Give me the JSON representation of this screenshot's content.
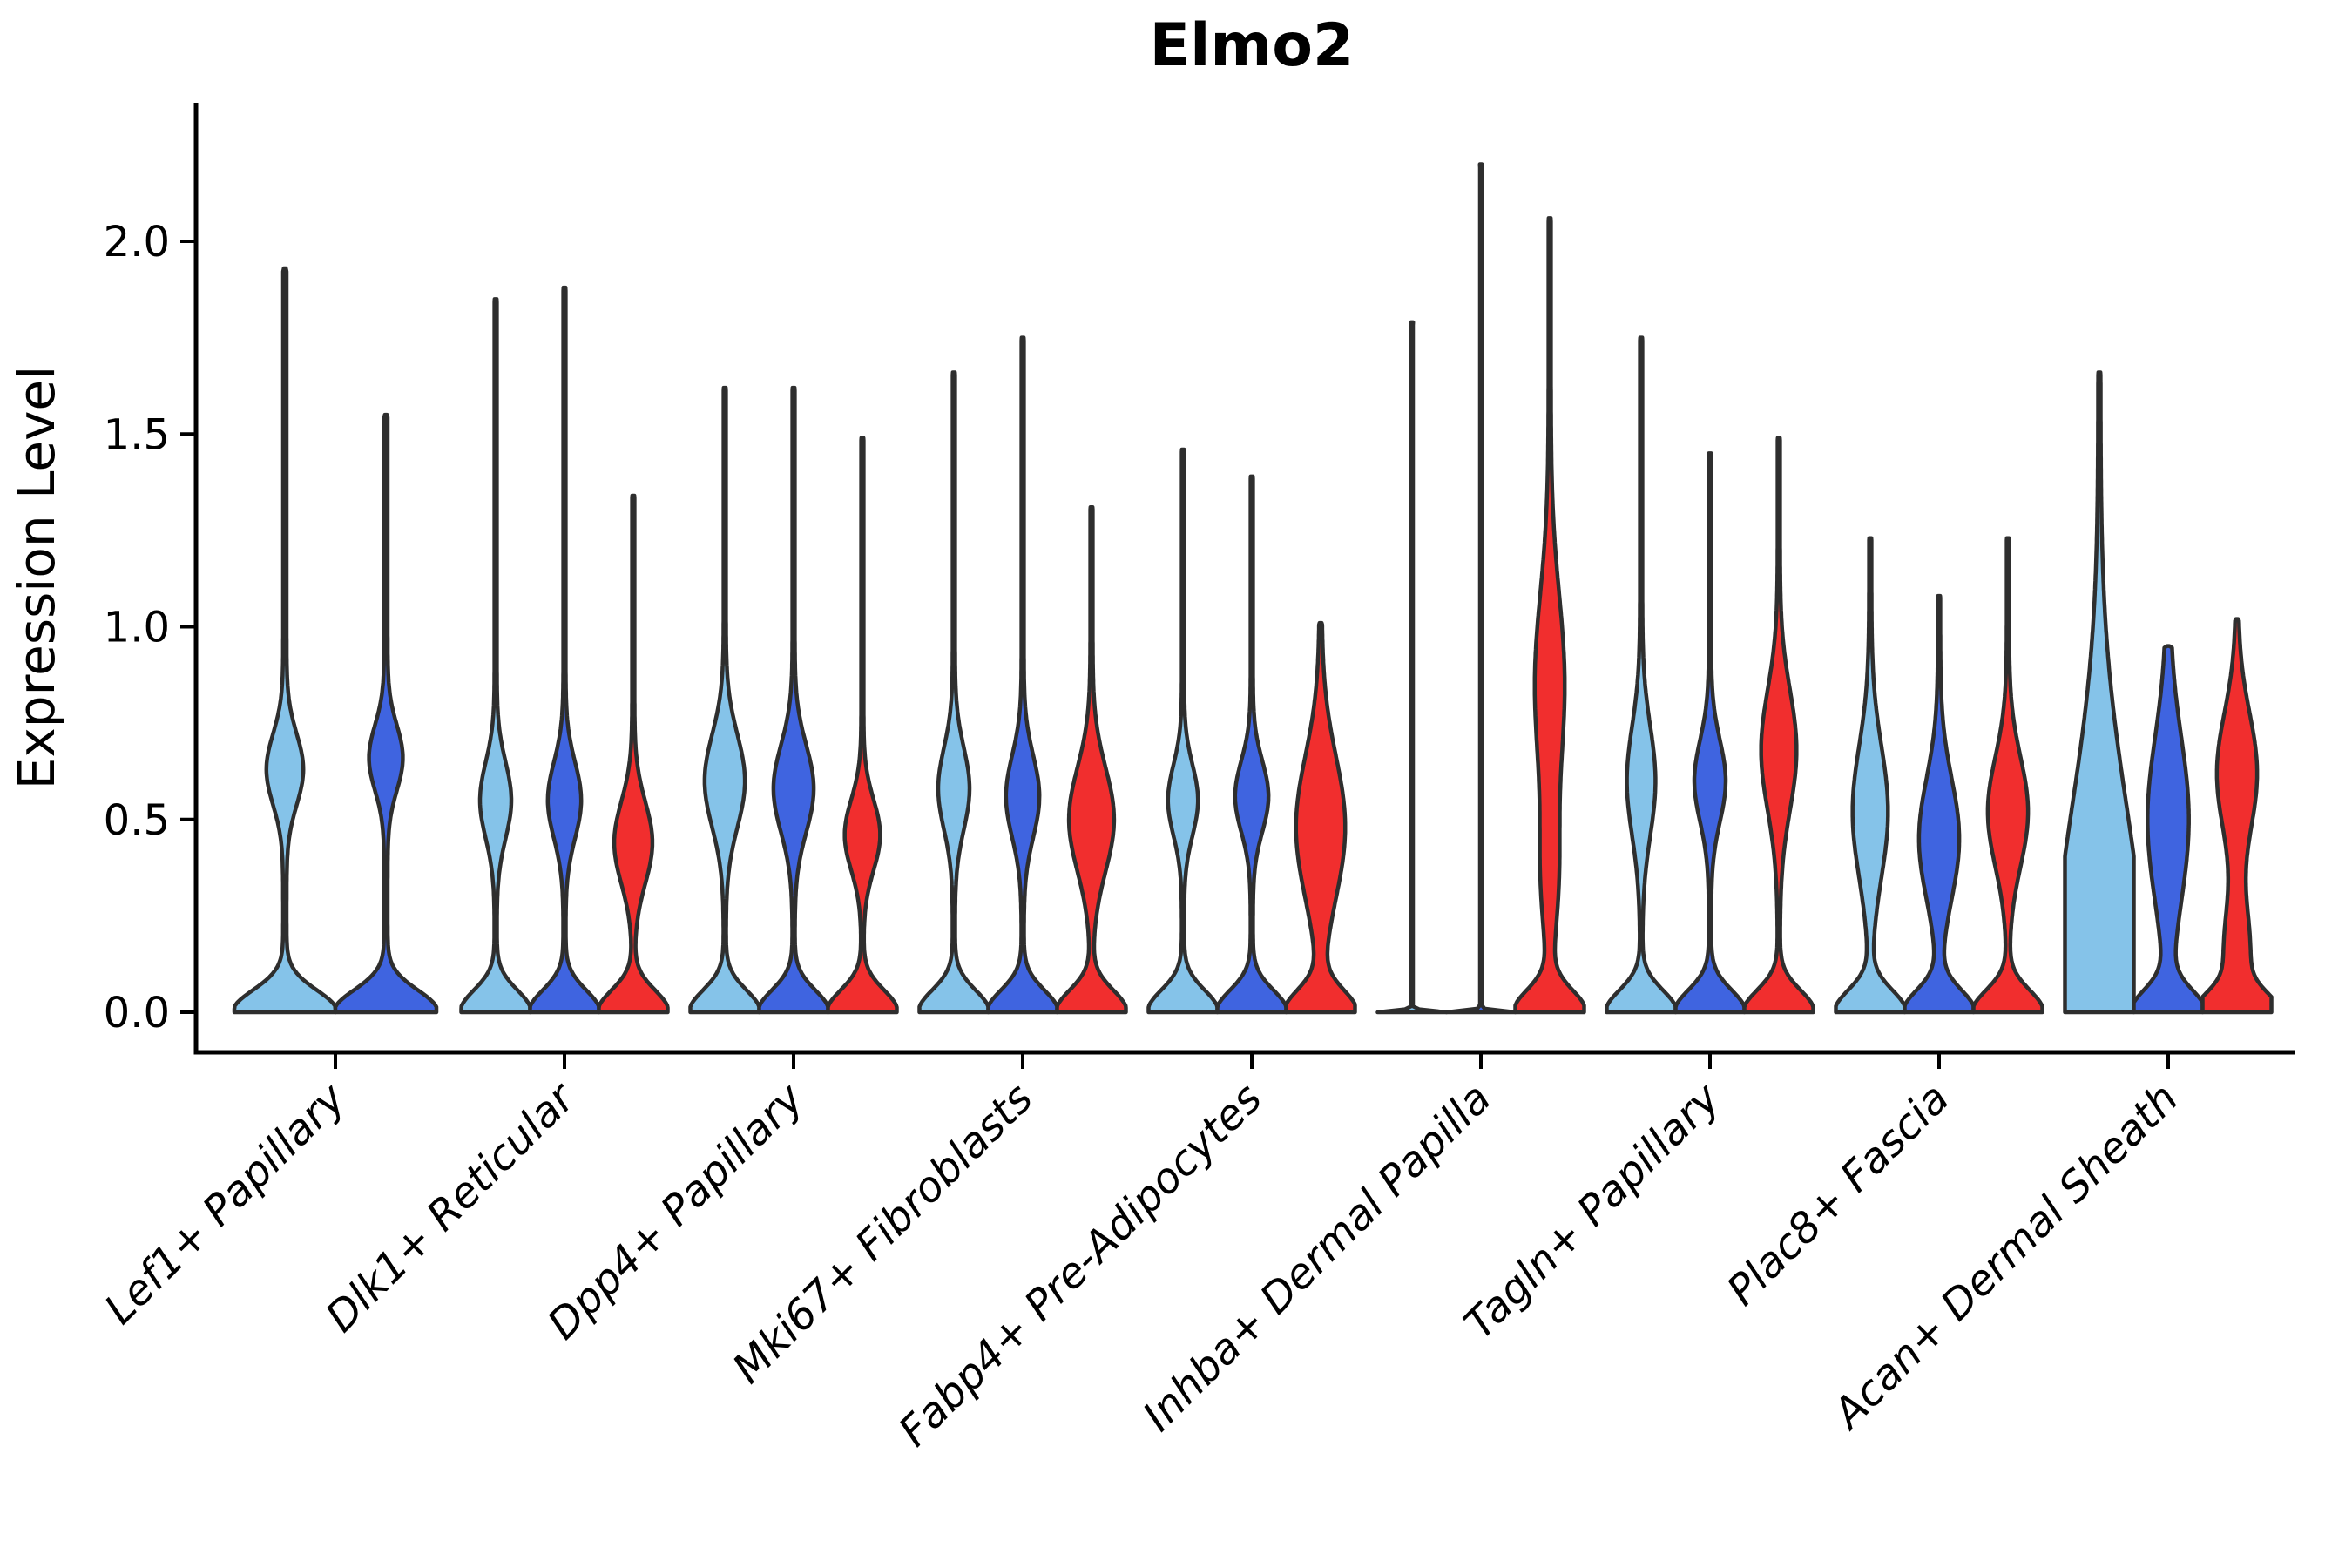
{
  "title": "Elmo2",
  "ylabel": "Expression Level",
  "chart_data": {
    "type": "violin",
    "title": "Elmo2",
    "ylabel": "Expression Level",
    "xlabel": "",
    "grid": false,
    "legend": "none",
    "ylim": [
      0,
      2.36
    ],
    "yticks": [
      "0.0",
      "0.5",
      "1.0",
      "1.5",
      "2.0"
    ],
    "ytick_values": [
      0.0,
      0.5,
      1.0,
      1.5,
      2.0
    ],
    "categories": [
      "Lef1+ Papillary",
      "Dlk1+ Reticular",
      "Dpp4+ Papillary",
      "Mki67+ Fibroblasts",
      "Fabp4+ Pre-Adipocytes",
      "Inhba+ Dermal Papilla",
      "Tagln+ Papillary",
      "Plac8+ Fascia",
      "Acan+ Dermal Sheath"
    ],
    "colors": {
      "light-blue": "#85C3E9",
      "dark-blue": "#3F64E0",
      "red": "#F12E2E"
    },
    "outline_color": "#2E2E2E",
    "axis_color": "#000000",
    "violins": [
      [
        {
          "series": "light-blue",
          "peak": 1.93,
          "bulges": [
            [
              0.63,
              0.13,
              0.33
            ]
          ]
        },
        {
          "series": "dark-blue",
          "peak": 1.55,
          "bulges": [
            [
              0.66,
              0.12,
              0.3
            ]
          ]
        }
      ],
      [
        {
          "series": "light-blue",
          "peak": 1.85,
          "bulges": [
            [
              0.55,
              0.14,
              0.42
            ]
          ]
        },
        {
          "series": "dark-blue",
          "peak": 1.88,
          "bulges": [
            [
              0.55,
              0.14,
              0.45
            ]
          ]
        },
        {
          "series": "red",
          "peak": 1.34,
          "bulges": [
            [
              0.44,
              0.15,
              0.52
            ]
          ]
        }
      ],
      [
        {
          "series": "light-blue",
          "peak": 1.62,
          "bulges": [
            [
              0.6,
              0.17,
              0.55
            ]
          ]
        },
        {
          "series": "dark-blue",
          "peak": 1.62,
          "bulges": [
            [
              0.58,
              0.16,
              0.55
            ]
          ]
        },
        {
          "series": "red",
          "peak": 1.49,
          "bulges": [
            [
              0.46,
              0.13,
              0.48
            ]
          ]
        }
      ],
      [
        {
          "series": "light-blue",
          "peak": 1.66,
          "bulges": [
            [
              0.58,
              0.15,
              0.42
            ]
          ]
        },
        {
          "series": "dark-blue",
          "peak": 1.75,
          "bulges": [
            [
              0.56,
              0.15,
              0.45
            ]
          ]
        },
        {
          "series": "red",
          "peak": 1.31,
          "bulges": [
            [
              0.5,
              0.19,
              0.62
            ]
          ]
        }
      ],
      [
        {
          "series": "light-blue",
          "peak": 1.46,
          "bulges": [
            [
              0.55,
              0.13,
              0.4
            ]
          ]
        },
        {
          "series": "dark-blue",
          "peak": 1.39,
          "bulges": [
            [
              0.56,
              0.13,
              0.45
            ]
          ]
        },
        {
          "series": "red",
          "peak": 1.01,
          "bulges": [
            [
              0.48,
              0.26,
              0.68
            ]
          ]
        }
      ],
      [
        {
          "series": "light-blue",
          "peak": 1.79,
          "base": [
            1.0,
            0.006
          ],
          "bulges": [],
          "spike": 0.025
        },
        {
          "series": "dark-blue",
          "peak": 2.2,
          "base": [
            1.0,
            0.006
          ],
          "bulges": [],
          "spike": 0.025
        },
        {
          "series": "red",
          "peak": 2.06,
          "bulges": [
            [
              0.85,
              0.33,
              0.4
            ],
            [
              0.35,
              0.22,
              0.2
            ]
          ]
        }
      ],
      [
        {
          "series": "light-blue",
          "peak": 1.75,
          "bulges": [
            [
              0.6,
              0.2,
              0.38
            ]
          ]
        },
        {
          "series": "dark-blue",
          "peak": 1.45,
          "bulges": [
            [
              0.6,
              0.15,
              0.42
            ]
          ]
        },
        {
          "series": "red",
          "peak": 1.49,
          "bulges": [
            [
              0.68,
              0.22,
              0.48
            ]
          ]
        }
      ],
      [
        {
          "series": "light-blue",
          "peak": 1.23,
          "bulges": [
            [
              0.52,
              0.24,
              0.48
            ]
          ]
        },
        {
          "series": "dark-blue",
          "peak": 1.08,
          "bulges": [
            [
              0.45,
              0.22,
              0.55
            ]
          ]
        },
        {
          "series": "red",
          "peak": 1.23,
          "bulges": [
            [
              0.52,
              0.2,
              0.55
            ]
          ]
        }
      ],
      [
        {
          "series": "light-blue",
          "peak": 1.66,
          "base": [
            1.0,
            0.5
          ],
          "bulges": [
            [
              0.45,
              0.5,
              0.45
            ]
          ]
        },
        {
          "series": "dark-blue",
          "peak": 0.95,
          "bulges": [
            [
              0.5,
              0.3,
              0.55
            ]
          ],
          "spike": 0.05
        },
        {
          "series": "red",
          "peak": 1.02,
          "base": [
            1.0,
            0.07
          ],
          "bulges": [
            [
              0.62,
              0.22,
              0.55
            ],
            [
              0.15,
              0.18,
              0.35
            ]
          ]
        }
      ]
    ]
  }
}
